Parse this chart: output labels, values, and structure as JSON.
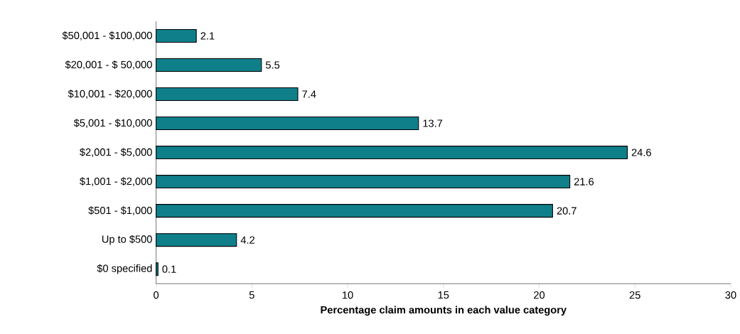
{
  "chart_data": {
    "type": "bar",
    "orientation": "horizontal",
    "categories": [
      "$50,001 - $100,000",
      "$20,001 - $ 50,000",
      "$10,001 - $20,000",
      "$5,001 - $10,000",
      "$2,001 - $5,000",
      "$1,001 - $2,000",
      "$501 - $1,000",
      "Up to $500",
      "$0 specified"
    ],
    "values": [
      2.1,
      5.5,
      7.4,
      13.7,
      24.6,
      21.6,
      20.7,
      4.2,
      0.1
    ],
    "color": "#0f7f8a",
    "xlim": [
      0,
      30
    ],
    "xticks": [
      0,
      5,
      10,
      15,
      20,
      25,
      30
    ],
    "xlabel": "**Percentage claim amounts in each value category**",
    "data_labels": true
  }
}
